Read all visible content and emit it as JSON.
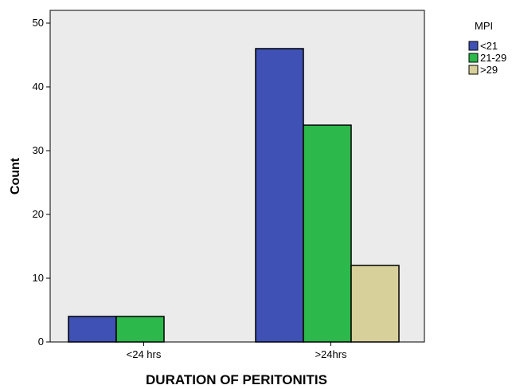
{
  "chart_data": {
    "type": "bar",
    "categories": [
      "<24 hrs",
      ">24hrs"
    ],
    "series": [
      {
        "name": "<21",
        "values": [
          4,
          46
        ],
        "color": "#3f51b5"
      },
      {
        "name": "21-29",
        "values": [
          4,
          34
        ],
        "color": "#2cb84a"
      },
      {
        "name": ">29",
        "values": [
          null,
          12
        ],
        "color": "#d8d09a"
      }
    ],
    "xlabel": "DURATION OF PERITONITIS",
    "ylabel": "Count",
    "ylim": [
      0,
      52
    ],
    "yticks": [
      0,
      10,
      20,
      30,
      40,
      50
    ],
    "legend": {
      "title": "MPI",
      "position": "top-right-outside"
    },
    "plot_background": "#ebebeb",
    "grid": false
  }
}
